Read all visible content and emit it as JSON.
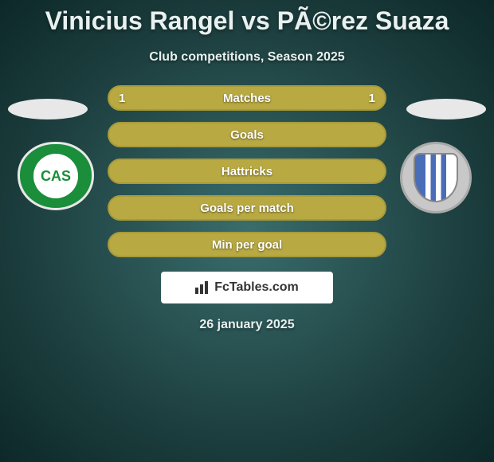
{
  "title": "Vinicius Rangel vs PÃ©rez Suaza",
  "subtitle": "Club competitions, Season 2025",
  "date": "26 january 2025",
  "watermark": "FcTables.com",
  "colors": {
    "bar_fill": "#b8a942",
    "bar_border": "#a89a3a",
    "text": "#e8f0f0",
    "badge_left": "#1a8e3a",
    "badge_right_stripe": "#4a6db8"
  },
  "badges": {
    "left_text": "CAS"
  },
  "stats": [
    {
      "label": "Matches",
      "left_value": "1",
      "right_value": "1",
      "left_pct": 50,
      "right_pct": 50,
      "filled": true
    },
    {
      "label": "Goals",
      "left_value": "",
      "right_value": "",
      "left_pct": 0,
      "right_pct": 0,
      "filled": true
    },
    {
      "label": "Hattricks",
      "left_value": "",
      "right_value": "",
      "left_pct": 0,
      "right_pct": 0,
      "filled": true
    },
    {
      "label": "Goals per match",
      "left_value": "",
      "right_value": "",
      "left_pct": 0,
      "right_pct": 0,
      "filled": true
    },
    {
      "label": "Min per goal",
      "left_value": "",
      "right_value": "",
      "left_pct": 0,
      "right_pct": 0,
      "filled": true
    }
  ]
}
